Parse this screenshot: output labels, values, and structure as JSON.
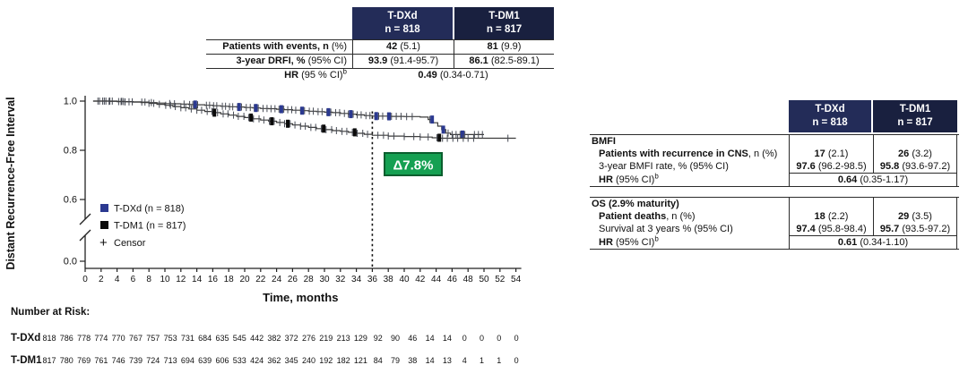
{
  "colors": {
    "header_navy": "#232c58",
    "header_navy_dark": "#19203f",
    "table_border": "#2b2b2b",
    "annotation_green": "#15a052",
    "annotation_green_border": "#0a5e2e",
    "tdxd_blue": "#2b3990",
    "tdm1_black": "#0a0a0a",
    "curve_line": "#3c3c3c"
  },
  "drfi_table": {
    "col_headers": [
      {
        "name": "T-DXd",
        "n": "n = 818"
      },
      {
        "name": "T-DM1",
        "n": "n = 817"
      }
    ],
    "rows": [
      {
        "label_b": "Patients with events, n ",
        "label_r": "(%)",
        "v1_b": "42",
        "v1_r": " (5.1)",
        "v2_b": "81",
        "v2_r": " (9.9)"
      },
      {
        "label_b": "3-year DRFI, % ",
        "label_r": "(95% CI)",
        "v1_b": "93.9",
        "v1_r": " (91.4-95.7)",
        "v2_b": "86.1",
        "v2_r": " (82.5-89.1)"
      }
    ],
    "hr_row": {
      "label_b": "HR",
      "label_r": " (95 % CI)",
      "label_sup": "b",
      "v_b": "0.49",
      "v_r": " (0.34-0.71)"
    }
  },
  "right_table": {
    "col_headers": [
      {
        "name": "T-DXd",
        "n": "n = 818"
      },
      {
        "name": "T-DM1",
        "n": "n = 817"
      }
    ],
    "sections": [
      {
        "title": "BMFI",
        "rows": [
          {
            "label_b": "Patients with recurrence in CNS",
            "label_r": ", n (%)",
            "v1_b": "17",
            "v1_r": " (2.1)",
            "v2_b": "26",
            "v2_r": " (3.2)"
          },
          {
            "label_b": "",
            "label_r": "3-year BMFI rate, % (95% CI)",
            "v1_b": "97.6",
            "v1_r": " (96.2-98.5)",
            "v2_b": "95.8",
            "v2_r": " (93.6-97.2)"
          }
        ],
        "hr_row": {
          "label_b": "HR",
          "label_r": " (95% CI)",
          "label_sup": "b",
          "v_b": "0.64",
          "v_r": " (0.35-1.17)"
        }
      },
      {
        "title": "OS (2.9% maturity)",
        "rows": [
          {
            "label_b": "Patient deaths",
            "label_r": ", n (%)",
            "v1_b": "18",
            "v1_r": " (2.2)",
            "v2_b": "29",
            "v2_r": " (3.5)"
          },
          {
            "label_b": "",
            "label_r": "Survival at 3 years % (95% CI)",
            "v1_b": "97.4",
            "v1_r": " (95.8-98.4)",
            "v2_b": "95.7",
            "v2_r": " (93.5-97.2)"
          }
        ],
        "hr_row": {
          "label_b": "HR",
          "label_r": " (95% CI)",
          "label_sup": "b",
          "v_b": "0.61",
          "v_r": " (0.34-1.10)"
        }
      }
    ]
  },
  "chart_data": {
    "type": "line",
    "subtype": "kaplan-meier",
    "title": "",
    "xlabel": "Time, months",
    "ylabel": "Distant Recurrence-Free Interval",
    "xlim": [
      0,
      55
    ],
    "xticks": [
      0,
      2,
      4,
      6,
      8,
      10,
      12,
      14,
      16,
      18,
      20,
      22,
      24,
      26,
      28,
      30,
      32,
      34,
      36,
      38,
      40,
      42,
      44,
      46,
      48,
      50,
      52,
      54
    ],
    "yticks": [
      1.0,
      0.8,
      0.6,
      0.0
    ],
    "axis_break_between": [
      0.0,
      0.6
    ],
    "grid": false,
    "legend_position": "inside-left",
    "legend": [
      "T-DXd (n = 818)",
      "T-DM1 (n = 817)",
      "Censor"
    ],
    "dashed_line_month": 36,
    "annotation": {
      "text": "Δ7.8%",
      "x_month": 36,
      "color": "#15a052"
    },
    "series": [
      {
        "id": "tdxd",
        "name": "T-DXd",
        "n": 818,
        "color": "#2b3990",
        "rate_at_36mo": 0.939,
        "steps": [
          [
            1,
            1.0
          ],
          [
            4,
            0.998
          ],
          [
            6,
            0.996
          ],
          [
            8,
            0.994
          ],
          [
            9,
            0.992
          ],
          [
            10,
            0.99
          ],
          [
            11,
            0.989
          ],
          [
            12,
            0.988
          ],
          [
            13,
            0.986
          ],
          [
            14,
            0.985
          ],
          [
            15,
            0.983
          ],
          [
            16,
            0.981
          ],
          [
            17,
            0.979
          ],
          [
            18,
            0.977
          ],
          [
            19,
            0.976
          ],
          [
            20,
            0.974
          ],
          [
            21,
            0.972
          ],
          [
            22,
            0.97
          ],
          [
            23,
            0.969
          ],
          [
            24,
            0.967
          ],
          [
            25,
            0.965
          ],
          [
            26,
            0.963
          ],
          [
            27,
            0.961
          ],
          [
            28,
            0.959
          ],
          [
            29,
            0.957
          ],
          [
            30,
            0.955
          ],
          [
            31,
            0.953
          ],
          [
            32,
            0.95
          ],
          [
            33,
            0.947
          ],
          [
            34,
            0.944
          ],
          [
            35,
            0.941
          ],
          [
            36,
            0.939
          ],
          [
            38,
            0.938
          ],
          [
            40,
            0.937
          ],
          [
            42,
            0.935
          ],
          [
            43,
            0.925
          ],
          [
            43.6,
            0.912
          ],
          [
            44.2,
            0.898
          ],
          [
            44.7,
            0.884
          ],
          [
            45.2,
            0.87
          ],
          [
            45.8,
            0.864
          ],
          [
            50,
            0.864
          ]
        ],
        "censors": [
          1.6,
          2.2,
          2.6,
          3.1,
          3.4,
          4.2,
          4.5,
          4.8,
          7.1,
          7.5,
          8.3,
          10.6,
          11.2,
          12.4,
          13.1,
          13.5,
          14.1,
          15.2,
          15.6,
          16.1,
          16.5,
          17.2,
          17.6,
          18.1,
          18.5,
          19.1,
          19.6,
          20.2,
          20.7,
          21.2,
          21.7,
          22.3,
          22.8,
          23.3,
          23.8,
          24.3,
          24.9,
          25.4,
          25.9,
          26.4,
          27.0,
          27.5,
          28.1,
          28.6,
          29.2,
          29.7,
          30.3,
          30.8,
          31.4,
          31.9,
          32.5,
          33.0,
          33.6,
          34.1,
          34.6,
          35.2,
          35.7,
          36.3,
          36.8,
          37.3,
          37.9,
          38.4,
          39.0,
          39.6,
          40.3,
          41.0,
          43.2,
          45.5,
          46.0,
          46.5,
          47.0,
          47.6,
          48.8,
          49.3,
          49.8
        ],
        "censors_bold": [
          13.8,
          19.3,
          21.4,
          24.6,
          27.2,
          30.5,
          33.3,
          36.5,
          38.1,
          43.5,
          44.9,
          47.3
        ]
      },
      {
        "id": "tdm1",
        "name": "T-DM1",
        "n": 817,
        "color": "#0a0a0a",
        "rate_at_36mo": 0.861,
        "steps": [
          [
            1,
            1.0
          ],
          [
            3,
            0.999
          ],
          [
            5,
            0.997
          ],
          [
            7,
            0.994
          ],
          [
            8,
            0.991
          ],
          [
            9,
            0.987
          ],
          [
            10,
            0.983
          ],
          [
            11,
            0.978
          ],
          [
            12,
            0.973
          ],
          [
            13,
            0.968
          ],
          [
            14,
            0.963
          ],
          [
            15,
            0.958
          ],
          [
            16,
            0.953
          ],
          [
            17,
            0.948
          ],
          [
            18,
            0.943
          ],
          [
            19,
            0.938
          ],
          [
            20,
            0.933
          ],
          [
            21,
            0.928
          ],
          [
            22,
            0.923
          ],
          [
            23,
            0.918
          ],
          [
            24,
            0.913
          ],
          [
            25,
            0.908
          ],
          [
            26,
            0.903
          ],
          [
            27,
            0.898
          ],
          [
            28,
            0.893
          ],
          [
            29,
            0.888
          ],
          [
            30,
            0.884
          ],
          [
            31,
            0.88
          ],
          [
            32,
            0.877
          ],
          [
            33,
            0.873
          ],
          [
            34,
            0.869
          ],
          [
            35,
            0.865
          ],
          [
            36,
            0.861
          ],
          [
            38,
            0.858
          ],
          [
            40,
            0.856
          ],
          [
            42,
            0.854
          ],
          [
            43.5,
            0.851
          ],
          [
            44.5,
            0.849
          ],
          [
            54,
            0.849
          ]
        ],
        "censors": [
          1.8,
          2.4,
          3.0,
          4.6,
          5.0,
          5.5,
          5.9,
          8.0,
          8.6,
          9.3,
          10.1,
          10.7,
          11.3,
          12.0,
          12.6,
          13.3,
          14.0,
          14.6,
          15.3,
          15.9,
          16.6,
          17.3,
          17.9,
          18.6,
          19.2,
          19.9,
          20.5,
          21.1,
          21.8,
          22.4,
          23.1,
          23.7,
          24.4,
          25.0,
          25.7,
          26.3,
          27.0,
          27.6,
          28.3,
          28.9,
          29.6,
          30.2,
          30.9,
          31.5,
          32.2,
          32.8,
          33.5,
          34.1,
          34.8,
          35.4,
          36.7,
          37.4,
          38.0,
          38.7,
          40.0,
          41.2,
          42.0,
          43.0,
          44.1,
          44.8,
          45.4,
          46.1,
          46.7,
          47.4,
          48.0,
          48.7,
          53.0
        ],
        "censors_bold": [
          16.2,
          20.8,
          23.4,
          25.4,
          29.9,
          33.8,
          44.4
        ]
      }
    ],
    "number_at_risk": {
      "title": "Number at Risk:",
      "rows": [
        {
          "label": "T-DXd",
          "values": [
            818,
            786,
            778,
            774,
            770,
            767,
            757,
            753,
            731,
            684,
            635,
            545,
            442,
            382,
            372,
            276,
            219,
            213,
            129,
            92,
            90,
            46,
            14,
            14,
            0,
            0,
            0,
            0
          ]
        },
        {
          "label": "T-DM1",
          "values": [
            817,
            780,
            769,
            761,
            746,
            739,
            724,
            713,
            694,
            639,
            606,
            533,
            424,
            362,
            345,
            240,
            192,
            182,
            121,
            84,
            79,
            38,
            14,
            13,
            4,
            1,
            1,
            0
          ]
        }
      ]
    }
  }
}
